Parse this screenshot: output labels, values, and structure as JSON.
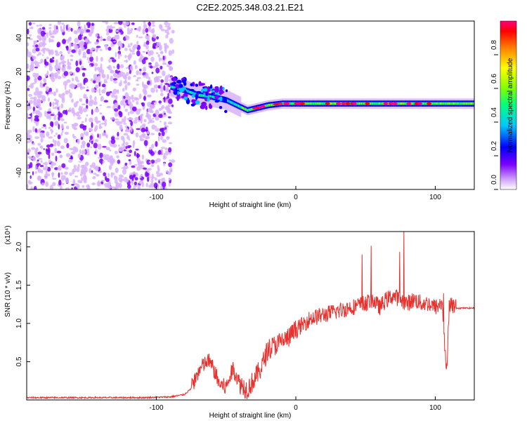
{
  "title": "C2E2.2025.348.03.21.E21",
  "colors": {
    "snr_line": "#e8302c",
    "axis": "#000000",
    "colormap": [
      "#ffffff",
      "#d9b3ff",
      "#7b00ff",
      "#0000ff",
      "#00c8ff",
      "#00ff80",
      "#80ff00",
      "#ffff00",
      "#ff8000",
      "#ff0000",
      "#ff0080"
    ]
  },
  "chart_data": [
    {
      "type": "heatmap",
      "title": "C2E2.2025.348.03.21.E21",
      "xlabel": "Height of straight line (km)",
      "ylabel": "Frequency (Hz)",
      "xlim": [
        -193,
        128
      ],
      "ylim": [
        -50,
        50
      ],
      "x_ticks": [
        -100,
        0,
        100
      ],
      "y_ticks": [
        -40,
        -20,
        0,
        20,
        40
      ],
      "colorbar": {
        "label": "Normalized spectral amplitude",
        "range": [
          0,
          1
        ],
        "ticks": [
          "0.0",
          "0.2",
          "0.4",
          "0.6",
          "0.8"
        ]
      },
      "ridge": {
        "x": [
          -90,
          -80,
          -70,
          -60,
          -50,
          -40,
          -35,
          -30,
          -20,
          -10,
          0,
          20,
          40,
          60,
          80,
          100,
          128
        ],
        "freq": [
          11,
          9,
          6,
          5,
          3,
          -1,
          -3,
          -2,
          0,
          1,
          1,
          1,
          1,
          1,
          1,
          1,
          1
        ]
      }
    },
    {
      "type": "line",
      "xlabel": "Height of straight line (km)",
      "ylabel": "SNR (10 * v/v)",
      "y_scale_label": "(x10⁴)",
      "xlim": [
        -193,
        128
      ],
      "ylim": [
        0,
        2.2
      ],
      "x_ticks": [
        -100,
        0,
        100
      ],
      "y_ticks": [
        0.5,
        1.0,
        1.5,
        2.0
      ],
      "series": [
        {
          "x": [
            -193,
            -170,
            -150,
            -130,
            -110,
            -90,
            -80,
            -75,
            -70,
            -66,
            -62,
            -58,
            -55,
            -50,
            -45,
            -40,
            -35,
            -30,
            -25,
            -20,
            -15,
            -10,
            -5,
            0,
            10,
            20,
            30,
            40,
            50,
            55,
            60,
            65,
            70,
            75,
            80,
            85,
            90,
            95,
            100,
            105,
            108,
            110,
            115,
            120,
            128
          ],
          "y": [
            0.03,
            0.03,
            0.03,
            0.03,
            0.03,
            0.04,
            0.07,
            0.15,
            0.35,
            0.45,
            0.5,
            0.35,
            0.2,
            0.15,
            0.4,
            0.2,
            0.12,
            0.25,
            0.4,
            0.65,
            0.7,
            0.75,
            0.8,
            0.9,
            1.05,
            1.1,
            1.15,
            1.2,
            1.25,
            1.3,
            1.2,
            1.3,
            1.35,
            1.3,
            1.25,
            1.3,
            1.25,
            1.25,
            1.2,
            1.25,
            0.3,
            1.25,
            1.2,
            1.2,
            1.2
          ]
        }
      ]
    }
  ]
}
